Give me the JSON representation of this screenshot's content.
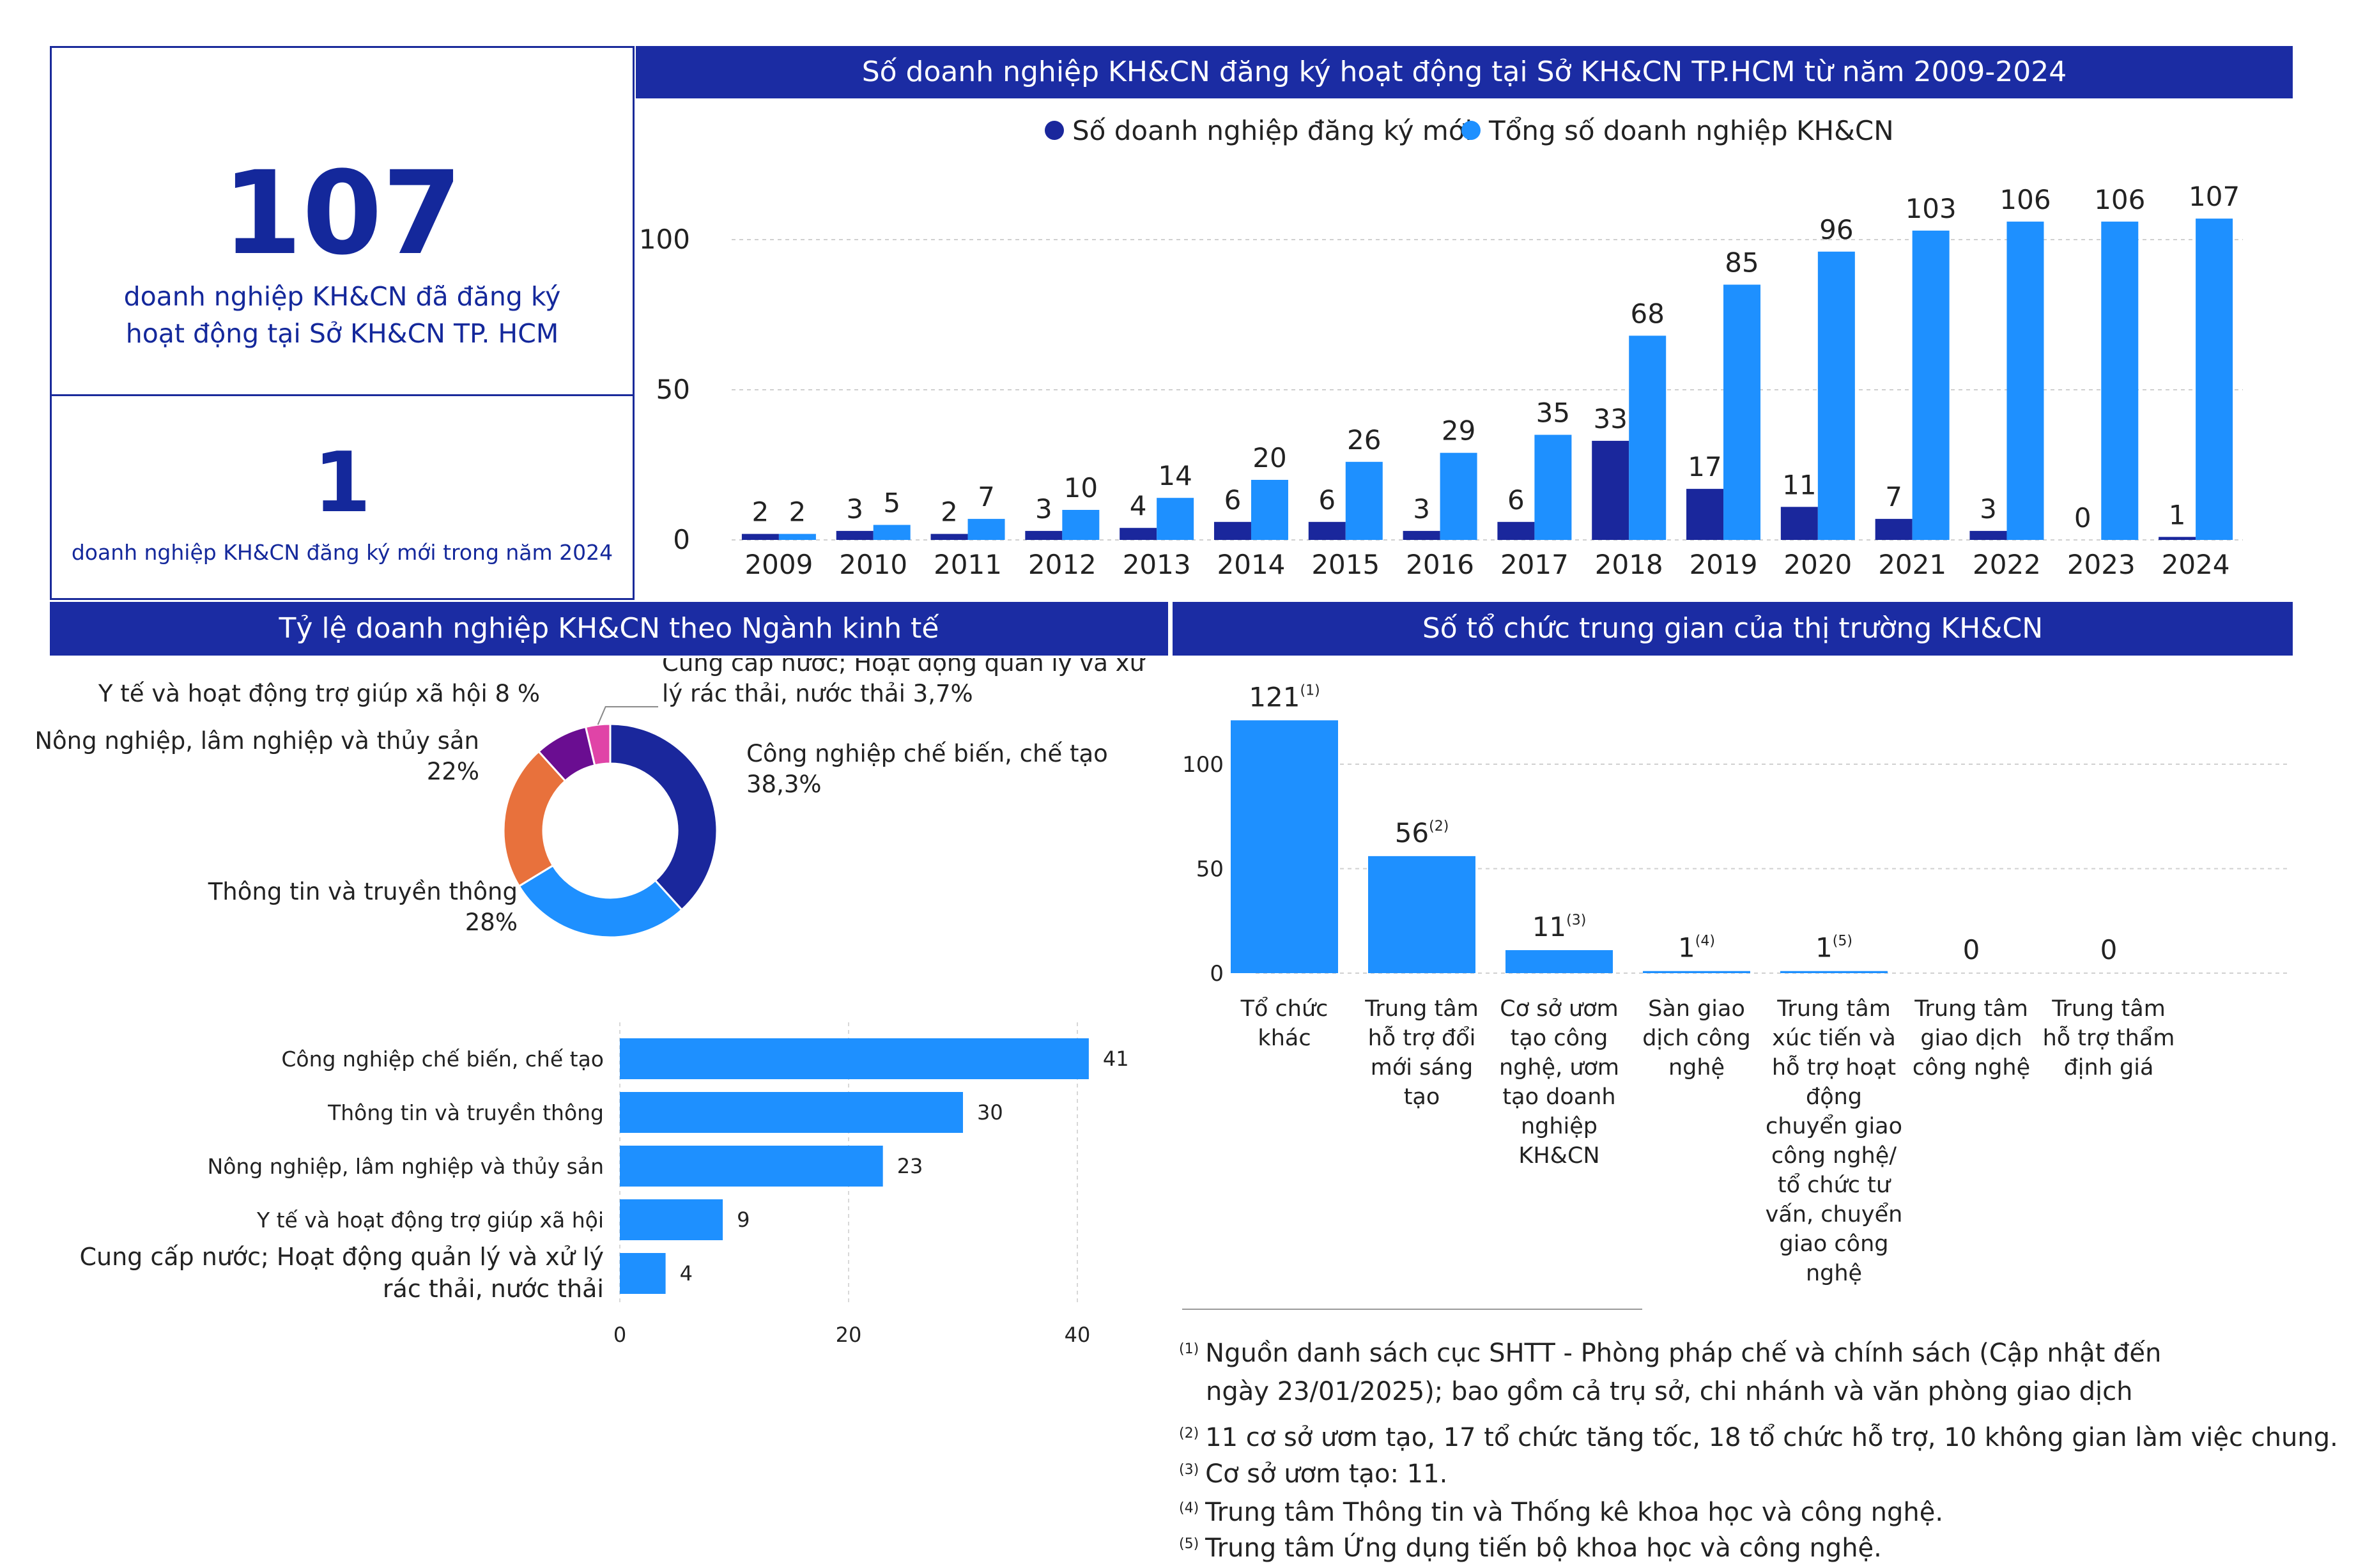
{
  "kpi": {
    "total_value": "107",
    "total_caption": "doanh nghiệp KH&CN đã đăng ký hoạt động tại Sở KH&CN TP. HCM",
    "new_value": "1",
    "new_caption": "doanh nghiệp KH&CN đăng ký mới trong năm 2024"
  },
  "banners": {
    "main": "Số doanh nghiệp KH&CN đăng ký hoạt động tại Sở KH&CN TP.HCM từ năm 2009-2024",
    "sector": "Tỷ lệ doanh nghiệp KH&CN theo Ngành kinh tế",
    "intermediary": "Số tổ chức trung gian của thị trường KH&CN"
  },
  "colors": {
    "dark_blue": "#1a279c",
    "light_blue": "#1e90ff",
    "orange": "#e8713c",
    "purple": "#6a0d91",
    "pink": "#e044a7",
    "banner": "#1b2ca3"
  },
  "chart_data": [
    {
      "type": "bar",
      "legend_position": "top",
      "categories": [
        "2009",
        "2010",
        "2011",
        "2012",
        "2013",
        "2014",
        "2015",
        "2016",
        "2017",
        "2018",
        "2019",
        "2020",
        "2021",
        "2022",
        "2023",
        "2024"
      ],
      "series": [
        {
          "name": "Số doanh nghiệp đăng ký mới",
          "values": [
            2,
            3,
            2,
            3,
            4,
            6,
            6,
            3,
            6,
            33,
            17,
            11,
            7,
            3,
            0,
            1
          ]
        },
        {
          "name": "Tổng số doanh nghiệp KH&CN",
          "values": [
            2,
            5,
            7,
            10,
            14,
            20,
            26,
            29,
            35,
            68,
            85,
            96,
            103,
            106,
            106,
            107
          ]
        }
      ],
      "ylim": [
        0,
        110
      ],
      "yticks": [
        0,
        50,
        100
      ],
      "grid": true
    },
    {
      "type": "pie",
      "donut": true,
      "slices": [
        {
          "label": "Công nghiệp chế biến, chế tạo",
          "pct_label": "38,3%",
          "value": 38.3
        },
        {
          "label": "Thông tin và truyền thông",
          "pct_label": "28%",
          "value": 28
        },
        {
          "label": "Nông nghiệp, lâm nghiệp và thủy sản",
          "pct_label": "22%",
          "value": 22
        },
        {
          "label": "Y tế và hoạt động trợ giúp xã hội",
          "pct_label": "8 %",
          "value": 8
        },
        {
          "label": "Cung cấp nước; Hoạt động quản lý và xử lý rác thải, nước thải",
          "pct_label": "3,7%",
          "value": 3.7
        }
      ]
    },
    {
      "type": "bar",
      "orientation": "horizontal",
      "categories": [
        "Công nghiệp chế biến, chế tạo",
        "Thông tin và truyền thông",
        "Nông nghiệp, lâm nghiệp và thủy sản",
        "Y tế và hoạt động trợ giúp xã hội",
        "Cung cấp nước; Hoạt động quản lý và xử lý rác thải, nước thải"
      ],
      "values": [
        41,
        30,
        23,
        9,
        4
      ],
      "xlim": [
        0,
        45
      ],
      "xticks": [
        0,
        20,
        40
      ],
      "grid": true
    },
    {
      "type": "bar",
      "categories": [
        "Tổ chức khác",
        "Trung tâm hỗ trợ đổi mới sáng tạo",
        "Cơ sở ươm tạo công nghệ, ươm tạo doanh nghiệp KH&CN",
        "Sàn giao dịch công nghệ",
        "Trung tâm xúc tiến và hỗ trợ hoạt động chuyển giao công nghệ/ tổ chức tư vấn, chuyển giao công nghệ",
        "Trung tâm giao dịch công nghệ",
        "Trung tâm hỗ trợ thẩm định giá"
      ],
      "values": [
        121,
        56,
        11,
        1,
        1,
        0,
        0
      ],
      "footnote_marks": [
        "(1)",
        "(2)",
        "(3)",
        "(4)",
        "(5)",
        "",
        ""
      ],
      "ylim": [
        0,
        130
      ],
      "yticks": [
        0,
        50,
        100
      ],
      "grid": true
    }
  ],
  "footnotes": [
    {
      "mark": "(1)",
      "lines": [
        "Nguồn danh sách cục SHTT - Phòng pháp chế và chính sách (Cập nhật đến",
        "ngày 23/01/2025); bao gồm cả trụ sở, chi nhánh và văn phòng giao dịch"
      ]
    },
    {
      "mark": "(2)",
      "lines": [
        "11 cơ sở ươm tạo, 17 tổ chức tăng tốc, 18 tổ chức hỗ trợ, 10 không gian làm việc chung."
      ]
    },
    {
      "mark": "(3)",
      "lines": [
        "Cơ sở ươm tạo: 11."
      ]
    },
    {
      "mark": "(4)",
      "lines": [
        "Trung tâm Thông tin và Thống kê khoa học và công nghệ."
      ]
    },
    {
      "mark": "(5)",
      "lines": [
        "Trung tâm Ứng dụng tiến bộ khoa học và công nghệ."
      ]
    }
  ]
}
